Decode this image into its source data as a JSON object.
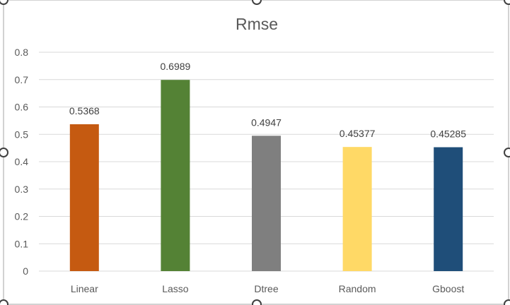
{
  "chart_data": {
    "type": "bar",
    "title": "Rmse",
    "xlabel": "",
    "ylabel": "",
    "categories": [
      "Linear",
      "Lasso",
      "Dtree",
      "Random",
      "Gboost"
    ],
    "values": [
      0.5368,
      0.6989,
      0.4947,
      0.45377,
      0.45285
    ],
    "data_labels": [
      "0.5368",
      "0.6989",
      "0.4947",
      "0.45377",
      "0.45285"
    ],
    "colors": [
      "#c55a11",
      "#548235",
      "#7f7f7f",
      "#ffd966",
      "#1f4e79"
    ],
    "ylim": [
      0,
      0.8
    ],
    "yticks": [
      0,
      0.1,
      0.2,
      0.3,
      0.4,
      0.5,
      0.6,
      0.7,
      0.8
    ],
    "ytick_labels": [
      "0",
      "0.1",
      "0.2",
      "0.3",
      "0.4",
      "0.5",
      "0.6",
      "0.7",
      "0.8"
    ],
    "grid": true,
    "legend": "none"
  }
}
